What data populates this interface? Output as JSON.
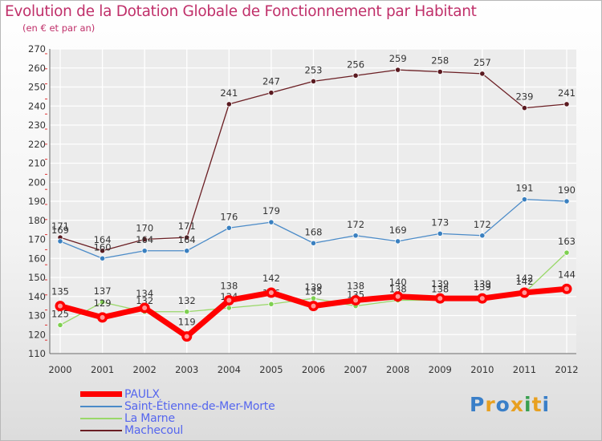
{
  "header": {
    "title": "Evolution de la Dotation Globale de Fonctionnement par Habitant",
    "subtitle": "(en € et par an)"
  },
  "chart_data": {
    "type": "line",
    "title": "Evolution de la Dotation Globale de Fonctionnement par Habitant",
    "subtitle": "(en € et par an)",
    "xlabel": "",
    "ylabel": "",
    "ylim": [
      110,
      270
    ],
    "yticks": [
      110,
      120,
      130,
      140,
      150,
      160,
      170,
      180,
      190,
      200,
      210,
      220,
      230,
      240,
      250,
      260,
      270
    ],
    "grid": true,
    "categories": [
      "2000",
      "2001",
      "2002",
      "2003",
      "2004",
      "2005",
      "2006",
      "2007",
      "2008",
      "2009",
      "2010",
      "2011",
      "2012"
    ],
    "series": [
      {
        "name": "Machecoul",
        "color": "#6b1f24",
        "values": [
          171,
          164,
          170,
          171,
          241,
          247,
          253,
          256,
          259,
          258,
          257,
          239,
          241
        ]
      },
      {
        "name": "Saint-Étienne-de-Mer-Morte",
        "color": "#4b8bc8",
        "values": [
          169,
          160,
          164,
          164,
          176,
          179,
          168,
          172,
          169,
          173,
          172,
          191,
          190
        ]
      },
      {
        "name": "La Marne",
        "color": "#9ad86a",
        "values": [
          125,
          137,
          132,
          132,
          134,
          136,
          139,
          135,
          138,
          138,
          139,
          142,
          163
        ]
      },
      {
        "name": "PAULX",
        "color": "#ff0000",
        "values": [
          135,
          129,
          134,
          119,
          138,
          142,
          135,
          138,
          140,
          139,
          139,
          142,
          144
        ]
      }
    ],
    "legend": [
      "PAULX",
      "Saint-Étienne-de-Mer-Morte",
      "La Marne",
      "Machecoul"
    ]
  },
  "legend": {
    "items": [
      {
        "label": "PAULX",
        "color": "#ff0000"
      },
      {
        "label": "Saint-Étienne-de-Mer-Morte",
        "color": "#4b8bc8"
      },
      {
        "label": "La Marne",
        "color": "#9ad86a"
      },
      {
        "label": "Machecoul",
        "color": "#6b1f24"
      }
    ]
  },
  "brand": {
    "letters": [
      "P",
      "r",
      "o",
      "x",
      "i",
      "t",
      "i"
    ],
    "colors": [
      "#3a7fc8",
      "#e8a020",
      "#3a7fc8",
      "#e8a020",
      "#3aa050",
      "#e8a020",
      "#3a7fc8"
    ]
  }
}
